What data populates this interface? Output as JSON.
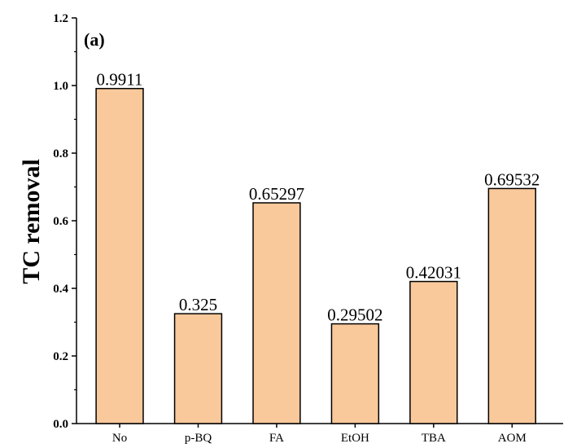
{
  "chart_data": {
    "type": "bar",
    "panel_label": "(a)",
    "title": "",
    "xlabel": "",
    "ylabel": "TC removal",
    "categories": [
      "No",
      "p-BQ",
      "FA",
      "EtOH",
      "TBA",
      "AOM"
    ],
    "values": [
      0.9911,
      0.325,
      0.65297,
      0.29502,
      0.42031,
      0.69532
    ],
    "value_labels": [
      "0.9911",
      "0.325",
      "0.65297",
      "0.29502",
      "0.42031",
      "0.69532"
    ],
    "ylim": [
      0.0,
      1.2
    ],
    "yticks": [
      "0.0",
      "0.2",
      "0.4",
      "0.6",
      "0.8",
      "1.0",
      "1.2"
    ],
    "grid": false,
    "legend": "none",
    "colors": {
      "bar_fill": "#F9C89B",
      "bar_stroke": "#000000",
      "axis": "#000000"
    }
  }
}
